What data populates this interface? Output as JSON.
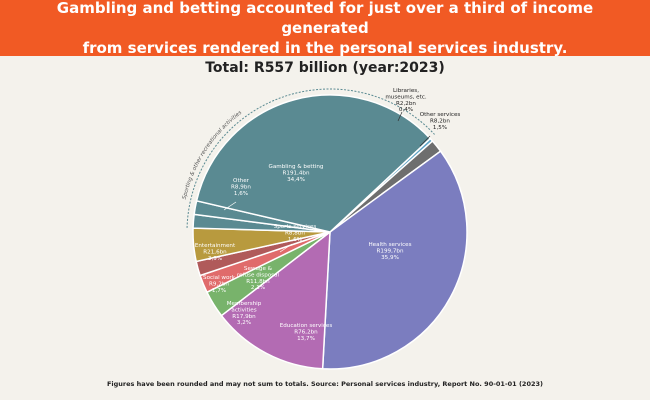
{
  "header": {
    "title": "Gambling and betting accounted for just over a third of income generated\nfrom services rendered in the personal services industry.",
    "subtitle": "Total: R557 billion (year:2023)"
  },
  "footnote": "Figures have been rounded and may not sum to totals. Source: Personal services industry, Report No. 90-01-01 (2023)",
  "chart_data": {
    "type": "pie",
    "title": "Total: R557 billion (year:2023)",
    "unit": "R billion",
    "group_label": "Sporting & other recreational activities",
    "slices": [
      {
        "name": "Libraries, museums, etc.",
        "value_label": "R2,2bn",
        "pct_label": "0,4%",
        "pct": 0.4,
        "color": "#5ea3c6"
      },
      {
        "name": "Other services",
        "value_label": "R8,2bn",
        "pct_label": "1,5%",
        "pct": 1.5,
        "color": "#6e6e6e"
      },
      {
        "name": "Health services",
        "value_label": "R199,7bn",
        "pct_label": "35,9%",
        "pct": 35.9,
        "color": "#7b7dbf"
      },
      {
        "name": "Education services",
        "value_label": "R76,2bn",
        "pct_label": "13,7%",
        "pct": 13.7,
        "color": "#b36bb3"
      },
      {
        "name": "Membership activities",
        "value_label": "R17,9bn",
        "pct_label": "3,2%",
        "pct": 3.2,
        "color": "#78b36b"
      },
      {
        "name": "Sewage & refuse disposal",
        "value_label": "R11,8bn",
        "pct_label": "2,1%",
        "pct": 2.1,
        "color": "#e06b6b"
      },
      {
        "name": "Social work",
        "value_label": "R9,2bn",
        "pct_label": "1,7%",
        "pct": 1.7,
        "color": "#b05a5a"
      },
      {
        "name": "Entertainment",
        "value_label": "R21,6bn",
        "pct_label": "3,9%",
        "pct": 3.9,
        "color": "#b89a3e"
      },
      {
        "name": "Sports services",
        "value_label": "R8,8bn",
        "pct_label": "1,6%",
        "pct": 1.6,
        "color": "#5a8a92"
      },
      {
        "name": "Other",
        "value_label": "R8,9bn",
        "pct_label": "1,6%",
        "pct": 1.6,
        "color": "#5a8a92"
      },
      {
        "name": "Gambling & betting",
        "value_label": "R191,4bn",
        "pct_label": "34,4%",
        "pct": 34.4,
        "color": "#5a8a92"
      }
    ]
  }
}
